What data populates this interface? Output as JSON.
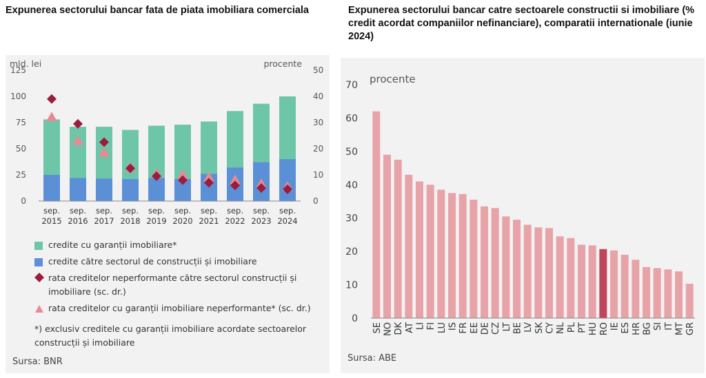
{
  "left": {
    "title": "Expunerea sectorului bancar fata de piata imobiliara comerciala",
    "source": "Sursa: BNR",
    "note": "*) exclusiv creditele cu garanții imobiliare acordate sectoarelor construcții și imobiliare",
    "legend": [
      {
        "label": "credite cu garanții imobiliare*",
        "marker": "square",
        "color": "#6ec6a8"
      },
      {
        "label": "credite către sectorul de construcții și imobiliare",
        "marker": "square",
        "color": "#5b8fd6"
      },
      {
        "label": "rata creditelor neperformante către sectorul construcții și imobiliare (sc. dr.)",
        "marker": "diamond",
        "color": "#9b1c3c"
      },
      {
        "label": "rata creditelor cu garanții imobiliare neperformante* (sc. dr.)",
        "marker": "triangle",
        "color": "#e88a92"
      }
    ]
  },
  "right": {
    "title": "Expunerea sectorului bancar catre sectoarele constructii si imobiliare (% credit acordat companiilor nefinanciare), comparatii internationale (iunie 2024)",
    "source": "Sursa: ABE"
  },
  "colors": {
    "green": "#6ec6a8",
    "blue": "#5b8fd6",
    "diamond": "#9b1c3c",
    "triangle": "#e88a92",
    "bar": "#e8a3a9",
    "bar_highlight": "#c0475a",
    "panel": "#f2f2f2"
  },
  "chart_data": [
    {
      "type": "bar",
      "categories": [
        "sep. 2015",
        "sep. 2016",
        "sep. 2017",
        "sep. 2018",
        "sep. 2019",
        "sep. 2020",
        "sep. 2021",
        "sep. 2022",
        "sep. 2023",
        "sep. 2024"
      ],
      "cat_line1": [
        "sep.",
        "sep.",
        "sep.",
        "sep.",
        "sep.",
        "sep.",
        "sep.",
        "sep.",
        "sep.",
        "sep."
      ],
      "cat_line2": [
        "2015",
        "2016",
        "2017",
        "2018",
        "2019",
        "2020",
        "2021",
        "2022",
        "2023",
        "2024"
      ],
      "ylabel_left": "mld. lei",
      "ylabel_right": "procente",
      "ylim_left": [
        0,
        125
      ],
      "yticks_left": [
        0,
        25,
        50,
        75,
        100,
        125
      ],
      "ylim_right": [
        0,
        50
      ],
      "yticks_right": [
        0,
        10,
        20,
        30,
        40,
        50
      ],
      "series": [
        {
          "name": "credite cu garanții imobiliare*",
          "type": "bar",
          "axis": "left",
          "values": [
            78,
            71,
            71,
            68,
            72,
            73,
            76,
            86,
            93,
            100
          ]
        },
        {
          "name": "credite către sectorul de construcții și imobiliare",
          "type": "bar",
          "axis": "left",
          "values": [
            25,
            22,
            21.5,
            21,
            22,
            21,
            26,
            32,
            37,
            40
          ]
        },
        {
          "name": "rata creditelor neperformante către sectorul construcții și imobiliare (sc. dr.)",
          "type": "scatter",
          "marker": "diamond",
          "axis": "right",
          "values": [
            39,
            29.5,
            22.5,
            12.5,
            9.5,
            8,
            7,
            6,
            5,
            4.5
          ]
        },
        {
          "name": "rata creditelor cu garanții imobiliare neperformante* (sc. dr.)",
          "type": "scatter",
          "marker": "triangle",
          "axis": "right",
          "values": [
            32,
            23,
            18.5,
            13,
            10.5,
            10,
            9,
            8,
            6.5,
            5.5
          ]
        }
      ],
      "grid": false
    },
    {
      "type": "bar",
      "ylabel": "procente",
      "ylim": [
        0,
        70
      ],
      "yticks": [
        0,
        10,
        20,
        30,
        40,
        50,
        60,
        70
      ],
      "categories": [
        "SE",
        "NO",
        "DK",
        "AT",
        "LI",
        "FI",
        "LU",
        "IS",
        "FR",
        "EE",
        "DE",
        "CZ",
        "LT",
        "BE",
        "LV",
        "SK",
        "CY",
        "NL",
        "PL",
        "PT",
        "HU",
        "RO",
        "IE",
        "ES",
        "HR",
        "BG",
        "SI",
        "IT",
        "MT",
        "GR"
      ],
      "values": [
        62,
        49,
        47.5,
        43,
        41,
        40,
        38.5,
        37.5,
        37.2,
        35.5,
        33.5,
        33,
        30.5,
        29.5,
        28,
        27.2,
        27,
        24.5,
        24,
        22,
        21.8,
        20.7,
        20.3,
        19,
        17.5,
        15.3,
        15,
        14.6,
        14,
        10.3
      ],
      "highlight": "RO",
      "grid": false
    }
  ]
}
